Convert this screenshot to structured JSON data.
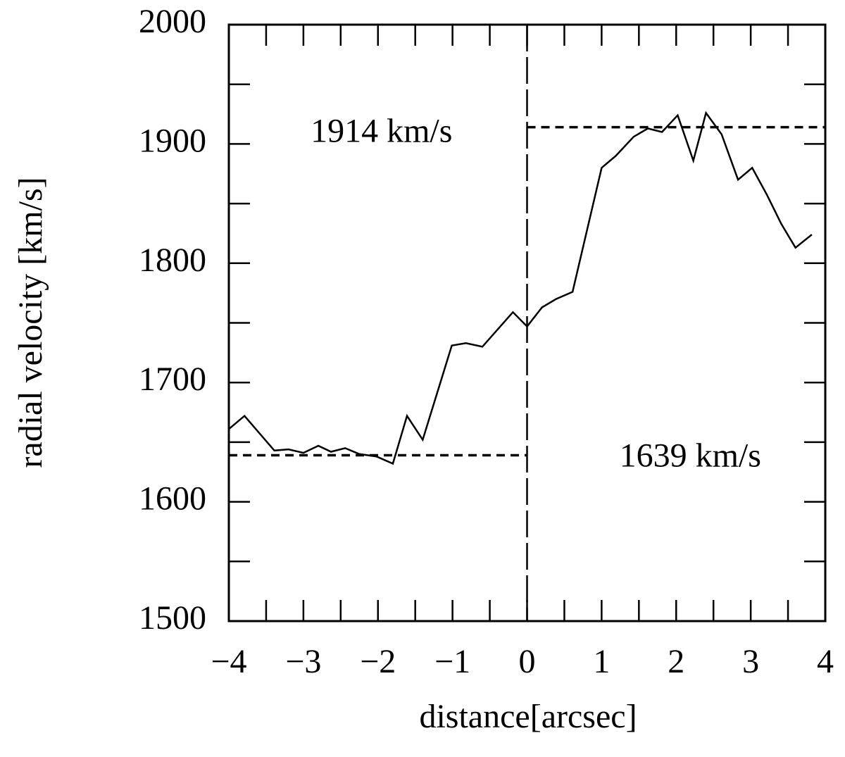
{
  "chart_data": {
    "type": "line",
    "xlabel": "distance[arcsec]",
    "ylabel": "radial velocity [km/s]",
    "x": [
      -4,
      -3.79,
      -3.39,
      -3.2,
      -3.0,
      -2.8,
      -2.63,
      -2.44,
      -2.25,
      -2.02,
      -1.8,
      -1.61,
      -1.4,
      -1.01,
      -0.82,
      -0.6,
      -0.19,
      0,
      0.2,
      0.39,
      0.61,
      1.0,
      1.19,
      1.43,
      1.62,
      1.81,
      2.02,
      2.23,
      2.4,
      2.61,
      2.83,
      3.02,
      3.22,
      3.41,
      3.6,
      3.82
    ],
    "values": [
      1661,
      1672,
      1643,
      1644,
      1641,
      1647,
      1642,
      1645,
      1640,
      1638,
      1632,
      1672,
      1652,
      1731,
      1733,
      1730,
      1759,
      1747,
      1763,
      1770,
      1776,
      1880,
      1890,
      1906,
      1913,
      1910,
      1924,
      1886,
      1926,
      1908,
      1870,
      1880,
      1857,
      1833,
      1813,
      1824
    ],
    "color": "#000000",
    "xlim": [
      -4,
      4
    ],
    "ylim": [
      1500,
      2000
    ],
    "xticks": [
      {
        "value": -4,
        "label": "−4"
      },
      {
        "value": -3,
        "label": "−3"
      },
      {
        "value": -2,
        "label": "−2"
      },
      {
        "value": -1,
        "label": "−1"
      },
      0,
      1,
      2,
      3,
      4
    ],
    "yticks": [
      1500,
      1600,
      1700,
      1800,
      1900,
      2000
    ],
    "xminorticks": [
      -3.5,
      -2.5,
      -1.5,
      -0.5,
      0.5,
      1.5,
      2.5,
      3.5
    ],
    "yminorticks": [
      1550,
      1650,
      1750,
      1850,
      1950
    ],
    "vline": 0,
    "reference_lines": [
      {
        "label": "1914 km/s",
        "value": 1914,
        "x_range": [
          0,
          4
        ]
      },
      {
        "label": "1639 km/s",
        "value": 1639,
        "x_range": [
          -4,
          0
        ]
      }
    ]
  }
}
